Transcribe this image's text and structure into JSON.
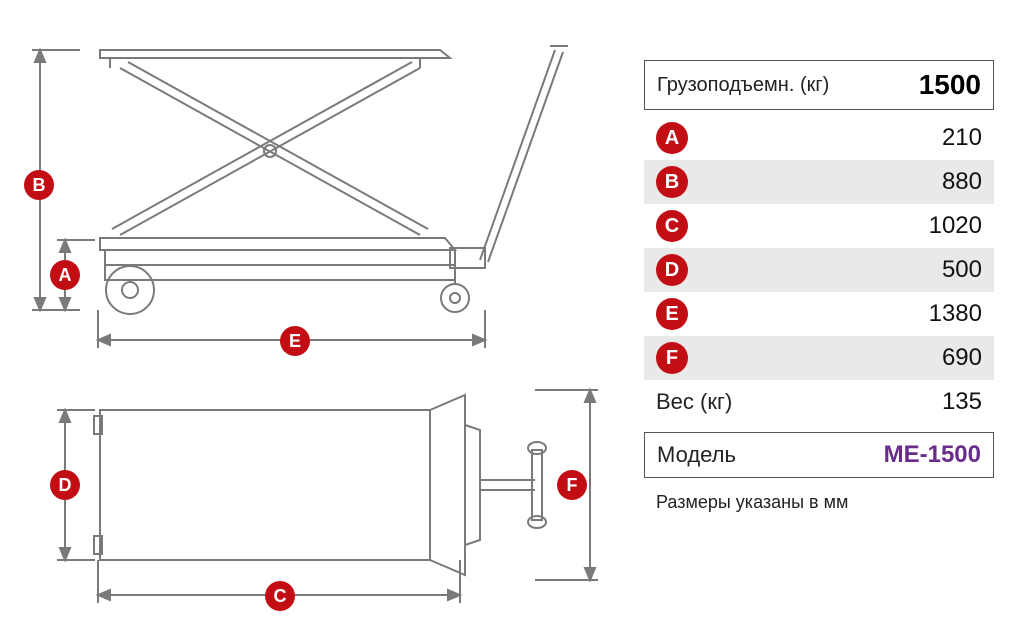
{
  "diagram": {
    "stroke_color": "#7a7a7a",
    "stroke_width": 2,
    "fill_color": "#ffffff",
    "badge_bg": "#c30d14",
    "badge_fg": "#ffffff",
    "side_view": {
      "labels": [
        "A",
        "B",
        "E"
      ]
    },
    "top_view": {
      "labels": [
        "C",
        "D",
        "F"
      ]
    }
  },
  "specs": {
    "capacity_label": "Грузоподъемн. (кг)",
    "capacity_value": "1500",
    "rows": [
      {
        "key": "A",
        "value": "210",
        "shaded": false
      },
      {
        "key": "B",
        "value": "880",
        "shaded": true
      },
      {
        "key": "C",
        "value": "1020",
        "shaded": false
      },
      {
        "key": "D",
        "value": "500",
        "shaded": true
      },
      {
        "key": "E",
        "value": "1380",
        "shaded": false
      },
      {
        "key": "F",
        "value": "690",
        "shaded": true
      }
    ],
    "weight_label": "Вес (кг)",
    "weight_value": "135",
    "model_label": "Модель",
    "model_value": "ME-1500",
    "footnote": "Размеры указаны в мм",
    "model_color": "#6a2c8a",
    "header_value_fontsize": 28,
    "row_value_fontsize": 24
  }
}
